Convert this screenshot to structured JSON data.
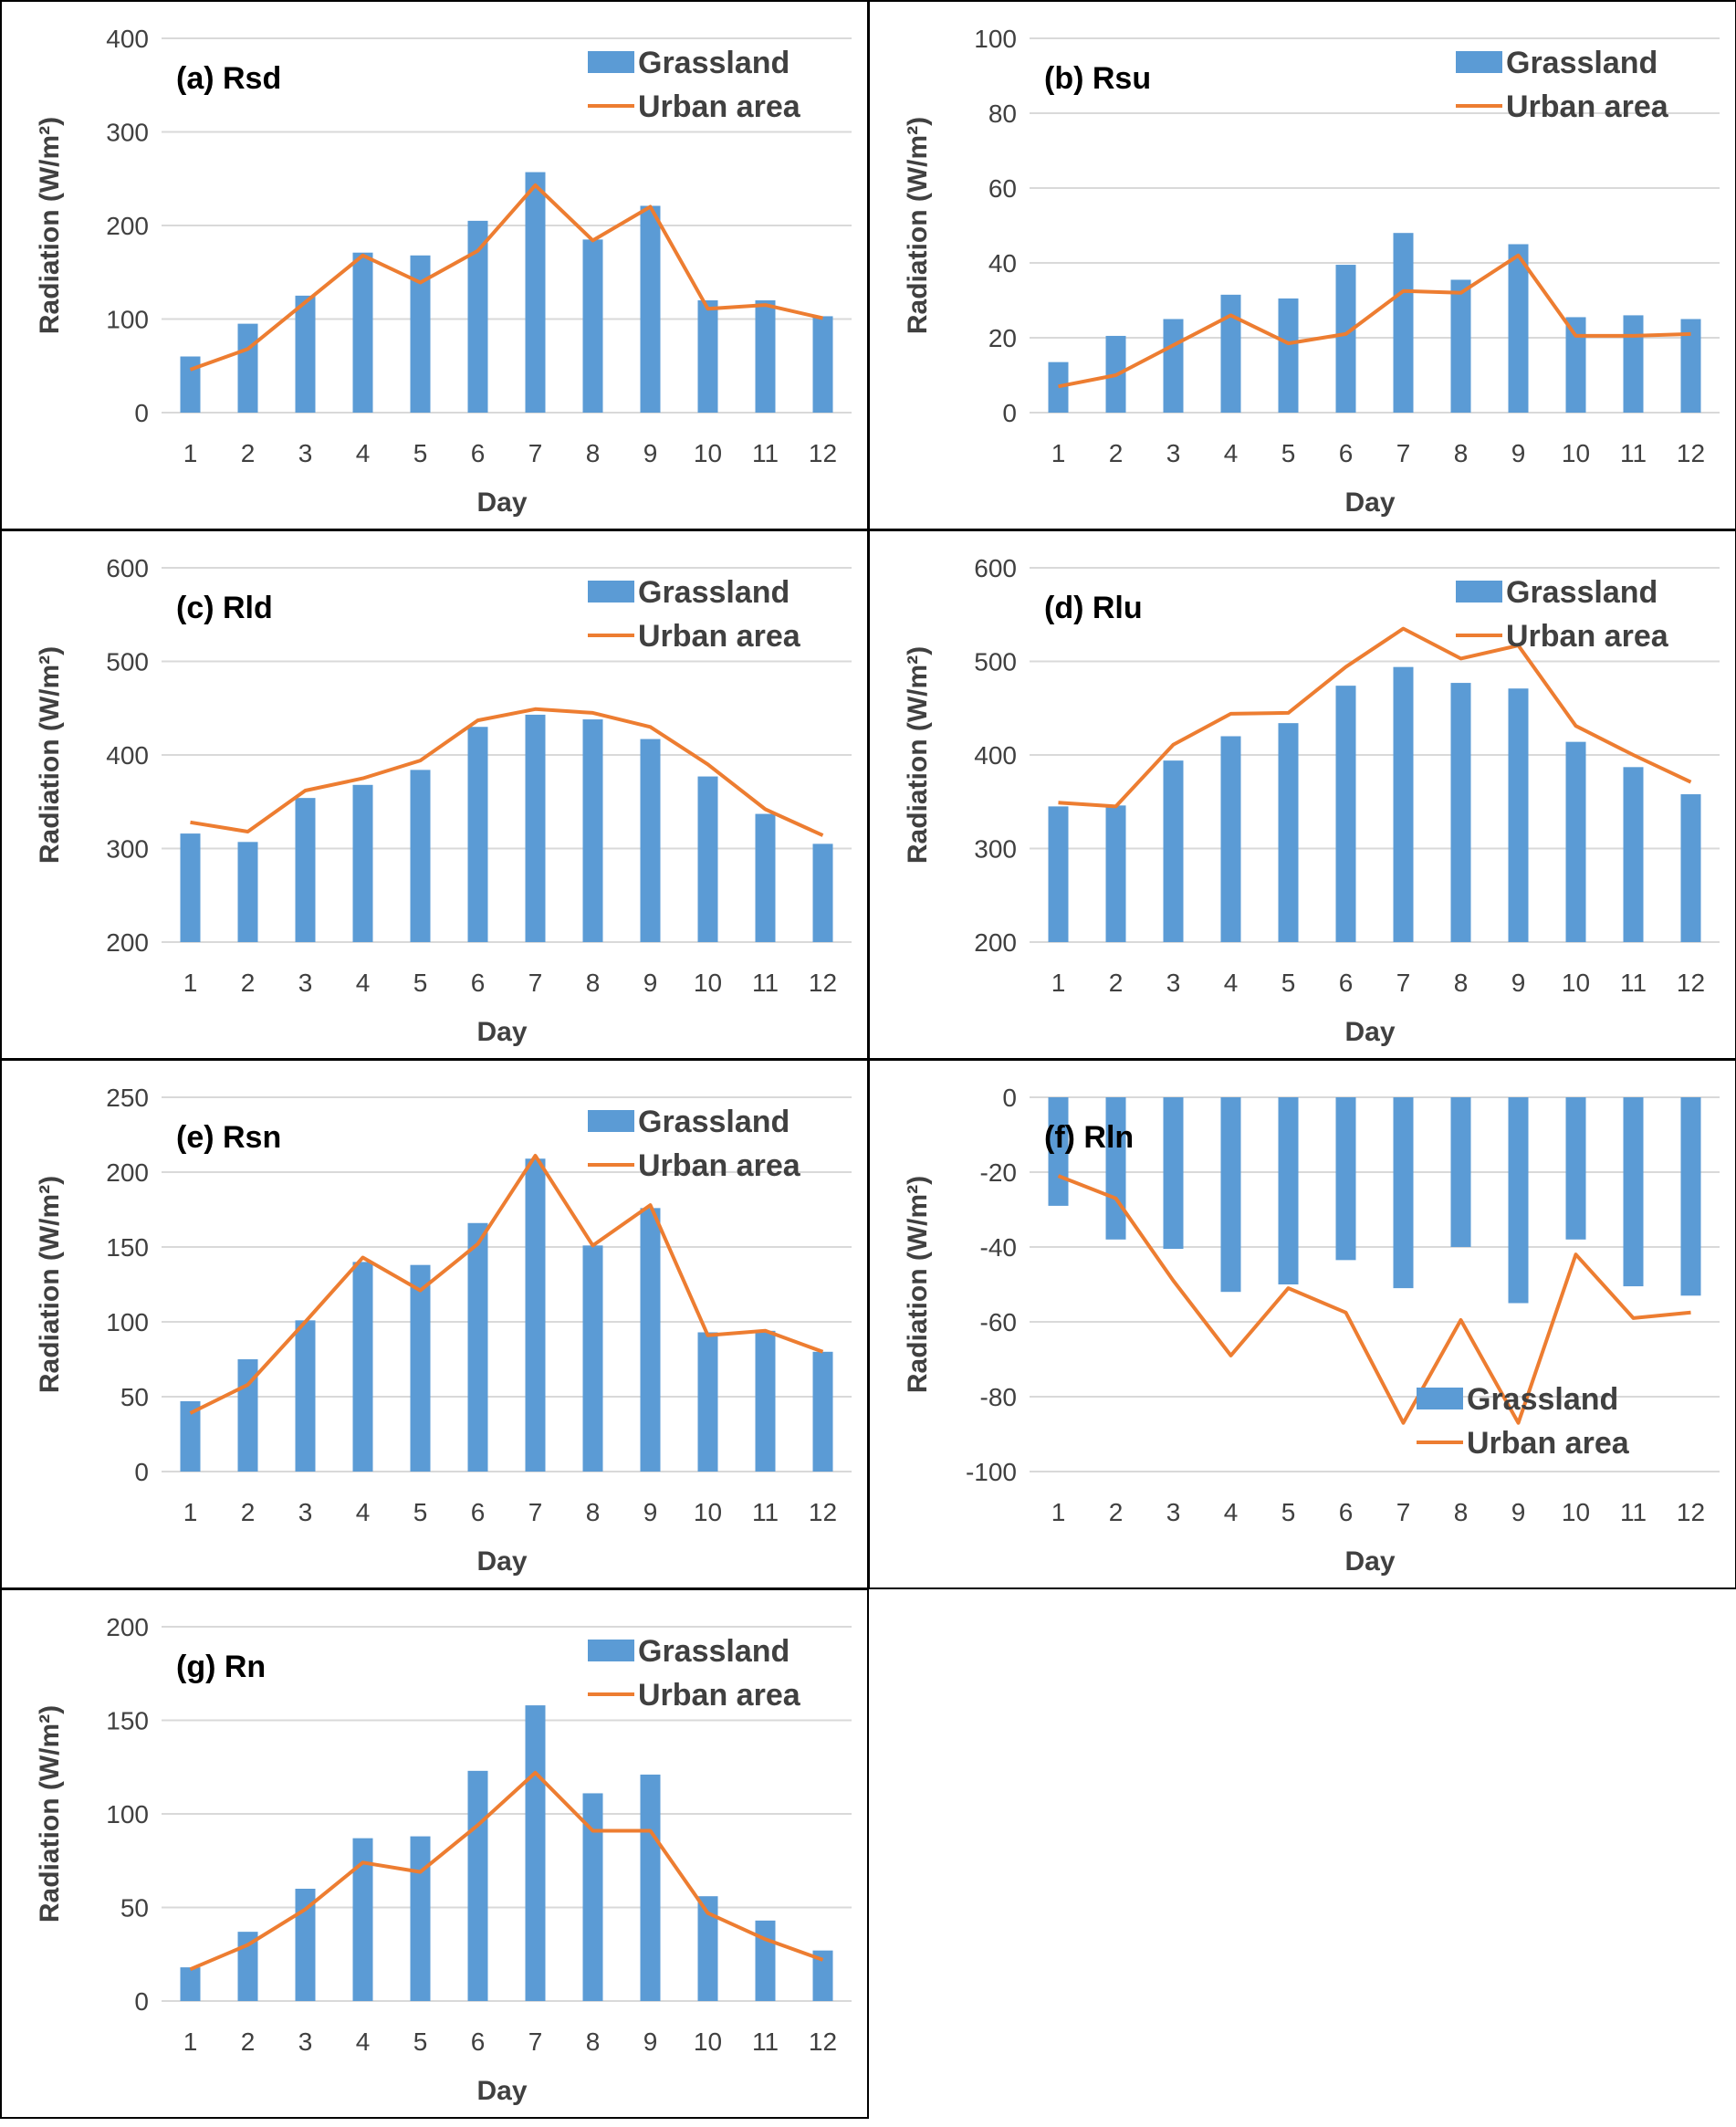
{
  "colors": {
    "grassland": "#5b9bd5",
    "urban": "#ed7d31",
    "grid": "#d9d9d9",
    "text": "#404040",
    "border": "#000000"
  },
  "chart_data": [
    {
      "id": "a",
      "type": "bar+line",
      "title": "(a) Rsd",
      "xlabel": "Day",
      "ylabel": "Radiation (W/m²)",
      "ylim": [
        0,
        400
      ],
      "yticks": [
        0,
        100,
        200,
        300,
        400
      ],
      "legend_position": "top-right",
      "categories": [
        "1",
        "2",
        "3",
        "4",
        "5",
        "6",
        "7",
        "8",
        "9",
        "10",
        "11",
        "12"
      ],
      "series": [
        {
          "name": "Grassland",
          "type": "bar",
          "values": [
            60,
            95,
            125,
            171,
            168,
            205,
            257,
            185,
            221,
            120,
            120,
            103
          ]
        },
        {
          "name": "Urban area",
          "type": "line",
          "values": [
            46,
            68,
            118,
            168,
            139,
            173,
            243,
            184,
            220,
            111,
            115,
            101
          ]
        }
      ]
    },
    {
      "id": "b",
      "type": "bar+line",
      "title": "(b) Rsu",
      "xlabel": "Day",
      "ylabel": "Radiation (W/m²)",
      "ylim": [
        0,
        100
      ],
      "yticks": [
        0,
        20,
        40,
        60,
        80,
        100
      ],
      "legend_position": "top-right",
      "categories": [
        "1",
        "2",
        "3",
        "4",
        "5",
        "6",
        "7",
        "8",
        "9",
        "10",
        "11",
        "12"
      ],
      "series": [
        {
          "name": "Grassland",
          "type": "bar",
          "values": [
            13.5,
            20.5,
            25,
            31.5,
            30.5,
            39.5,
            48,
            35.5,
            45,
            25.5,
            26,
            25
          ]
        },
        {
          "name": "Urban area",
          "type": "line",
          "values": [
            7,
            10,
            18,
            26,
            18.5,
            21,
            32.5,
            32,
            42,
            20.5,
            20.5,
            21
          ]
        }
      ]
    },
    {
      "id": "c",
      "type": "bar+line",
      "title": "(c) Rld",
      "xlabel": "Day",
      "ylabel": "Radiation (W/m²)",
      "ylim": [
        200,
        600
      ],
      "yticks": [
        200,
        300,
        400,
        500,
        600
      ],
      "legend_position": "top-right",
      "categories": [
        "1",
        "2",
        "3",
        "4",
        "5",
        "6",
        "7",
        "8",
        "9",
        "10",
        "11",
        "12"
      ],
      "series": [
        {
          "name": "Grassland",
          "type": "bar",
          "values": [
            316,
            307,
            354,
            368,
            384,
            430,
            443,
            438,
            417,
            377,
            337,
            305
          ]
        },
        {
          "name": "Urban area",
          "type": "line",
          "values": [
            328,
            318,
            362,
            375,
            394,
            437,
            449,
            445,
            430,
            390,
            342,
            314
          ]
        }
      ]
    },
    {
      "id": "d",
      "type": "bar+line",
      "title": "(d) Rlu",
      "xlabel": "Day",
      "ylabel": "Radiation (W/m²)",
      "ylim": [
        200,
        600
      ],
      "yticks": [
        200,
        300,
        400,
        500,
        600
      ],
      "legend_position": "top-right",
      "categories": [
        "1",
        "2",
        "3",
        "4",
        "5",
        "6",
        "7",
        "8",
        "9",
        "10",
        "11",
        "12"
      ],
      "series": [
        {
          "name": "Grassland",
          "type": "bar",
          "values": [
            345,
            346,
            394,
            420,
            434,
            474,
            494,
            477,
            471,
            414,
            387,
            358
          ]
        },
        {
          "name": "Urban area",
          "type": "line",
          "values": [
            349,
            345,
            411,
            444,
            445,
            494,
            535,
            503,
            517,
            431,
            400,
            371
          ]
        }
      ]
    },
    {
      "id": "e",
      "type": "bar+line",
      "title": "(e) Rsn",
      "xlabel": "Day",
      "ylabel": "Radiation (W/m²)",
      "ylim": [
        0,
        250
      ],
      "yticks": [
        0,
        50,
        100,
        150,
        200,
        250
      ],
      "legend_position": "top-right",
      "categories": [
        "1",
        "2",
        "3",
        "4",
        "5",
        "6",
        "7",
        "8",
        "9",
        "10",
        "11",
        "12"
      ],
      "series": [
        {
          "name": "Grassland",
          "type": "bar",
          "values": [
            47,
            75,
            101,
            140,
            138,
            166,
            209,
            151,
            176,
            93,
            94,
            80
          ]
        },
        {
          "name": "Urban area",
          "type": "line",
          "values": [
            39,
            58,
            100,
            143,
            121,
            152,
            211,
            151,
            178,
            91,
            94,
            80
          ]
        }
      ]
    },
    {
      "id": "f",
      "type": "bar+line",
      "title": "(f) Rln",
      "xlabel": "Day",
      "ylabel": "Radiation (W/m²)",
      "ylim": [
        -100,
        0
      ],
      "yticks": [
        -100,
        -80,
        -60,
        -40,
        -20,
        0
      ],
      "legend_position": "bottom-right",
      "categories": [
        "1",
        "2",
        "3",
        "4",
        "5",
        "6",
        "7",
        "8",
        "9",
        "10",
        "11",
        "12"
      ],
      "series": [
        {
          "name": "Grassland",
          "type": "bar",
          "values": [
            -29,
            -38,
            -40.5,
            -52,
            -50,
            -43.5,
            -51,
            -40,
            -55,
            -38,
            -50.5,
            -53
          ]
        },
        {
          "name": "Urban area",
          "type": "line",
          "values": [
            -21,
            -27,
            -49,
            -69,
            -51,
            -57.5,
            -87,
            -59.5,
            -87,
            -42,
            -59,
            -57.5
          ]
        }
      ]
    },
    {
      "id": "g",
      "type": "bar+line",
      "title": "(g) Rn",
      "xlabel": "Day",
      "ylabel": "Radiation (W/m²)",
      "ylim": [
        0,
        200
      ],
      "yticks": [
        0,
        50,
        100,
        150,
        200
      ],
      "legend_position": "top-right",
      "categories": [
        "1",
        "2",
        "3",
        "4",
        "5",
        "6",
        "7",
        "8",
        "9",
        "10",
        "11",
        "12"
      ],
      "series": [
        {
          "name": "Grassland",
          "type": "bar",
          "values": [
            18,
            37,
            60,
            87,
            88,
            123,
            158,
            111,
            121,
            56,
            43,
            27
          ]
        },
        {
          "name": "Urban area",
          "type": "line",
          "values": [
            17,
            30,
            49,
            74,
            69,
            94,
            122,
            91,
            91,
            47,
            33,
            22
          ]
        }
      ]
    }
  ]
}
